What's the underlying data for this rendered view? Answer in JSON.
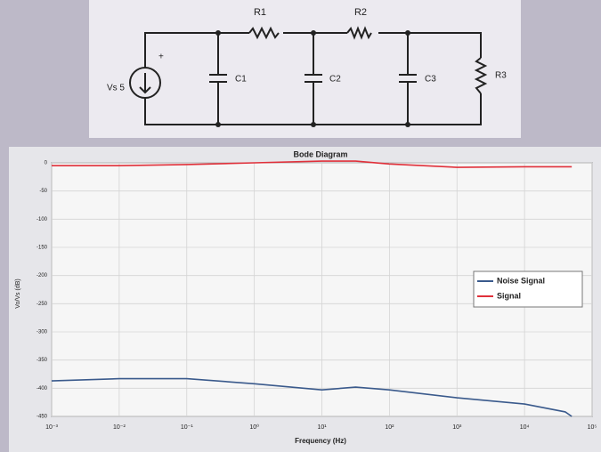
{
  "circuit": {
    "source": "Vs 5",
    "plus": "+",
    "r1": "R1",
    "r2": "R2",
    "r3": "R3",
    "c1": "C1",
    "c2": "C2",
    "c3": "C3"
  },
  "chart_data": {
    "type": "line",
    "title": "Bode Diagram",
    "x_label": "Frequency (Hz)",
    "y_label": "Vo/Vs (dB)",
    "xscale": "log",
    "grid": true,
    "legend": "right",
    "x": [
      0.001,
      0.01,
      0.1,
      1,
      10,
      31.6,
      100,
      1000,
      10000,
      40000,
      50000
    ],
    "series": [
      {
        "name": "Noise Signal",
        "color": "#3a5a8c",
        "values": [
          -387,
          -383,
          -383,
          -392,
          -403,
          -398,
          -403,
          -417,
          -428,
          -442,
          -450
        ]
      },
      {
        "name": "Signal",
        "color": "#e0303a",
        "values": [
          -5,
          -5,
          -3,
          0,
          3,
          3,
          -2,
          -8,
          -7,
          -7,
          -7
        ]
      }
    ],
    "xlim": [
      0.001,
      100000
    ],
    "xticks": [
      {
        "value": 0.001,
        "label": "10⁻³"
      },
      {
        "value": 0.01,
        "label": "10⁻²"
      },
      {
        "value": 0.1,
        "label": "10⁻¹"
      },
      {
        "value": 1,
        "label": "10⁰"
      },
      {
        "value": 10,
        "label": "10¹"
      },
      {
        "value": 100,
        "label": "10²"
      },
      {
        "value": 1000,
        "label": "10³"
      },
      {
        "value": 10000,
        "label": "10⁴"
      },
      {
        "value": 100000,
        "label": "10⁵"
      }
    ],
    "ylim": [
      -450,
      0
    ],
    "yticks": [
      0,
      -50,
      -100,
      -150,
      -200,
      -250,
      -300,
      -350,
      -400,
      -450
    ]
  }
}
